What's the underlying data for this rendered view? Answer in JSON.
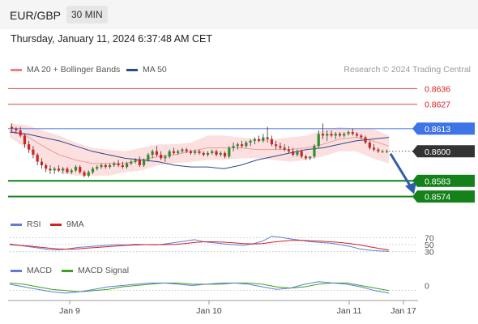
{
  "header": {
    "pair": "EUR/GBP",
    "timeframe": "30 MIN"
  },
  "datetime": "Thursday, January 11, 2024 6:37:48 AM CET",
  "legend_main": [
    {
      "label": "MA 20 + Bollinger Bands",
      "color": "#f08080"
    },
    {
      "label": "MA 50",
      "color": "#2c4a8a"
    }
  ],
  "credit": "Research © 2024 Trading Central",
  "legend_rsi": [
    {
      "label": "RSI",
      "color": "#5b7fd6"
    },
    {
      "label": "9MA",
      "color": "#d42020"
    }
  ],
  "legend_macd": [
    {
      "label": "MACD",
      "color": "#5b7fd6"
    },
    {
      "label": "MACD Signal",
      "color": "#3ea21b"
    }
  ],
  "chart_data": {
    "type": "candlestick",
    "instrument": "EUR/GBP",
    "interval": "30 MIN",
    "ylim": [
      0.8565,
      0.8645
    ],
    "levels": [
      {
        "value": 0.8636,
        "label": "0.8636",
        "style": "resistance"
      },
      {
        "value": 0.8627,
        "label": "0.8627",
        "style": "resistance"
      },
      {
        "value": 0.8613,
        "label": "0.8613",
        "style": "pivot"
      },
      {
        "value": 0.86,
        "label": "0.8600",
        "style": "last"
      },
      {
        "value": 0.8583,
        "label": "0.8583",
        "style": "support"
      },
      {
        "value": 0.8574,
        "label": "0.8574",
        "style": "support"
      }
    ],
    "candles": [
      [
        0.8614,
        0.8616,
        0.8611,
        0.8613
      ],
      [
        0.8613,
        0.8614,
        0.861,
        0.8612
      ],
      [
        0.8612,
        0.8614,
        0.8608,
        0.8609
      ],
      [
        0.8609,
        0.861,
        0.8602,
        0.8604
      ],
      [
        0.8604,
        0.8606,
        0.8599,
        0.8601
      ],
      [
        0.8601,
        0.8603,
        0.8596,
        0.8598
      ],
      [
        0.8598,
        0.8599,
        0.8592,
        0.8594
      ],
      [
        0.8594,
        0.8596,
        0.859,
        0.8592
      ],
      [
        0.8592,
        0.8593,
        0.8588,
        0.859
      ],
      [
        0.859,
        0.8592,
        0.8587,
        0.8589
      ],
      [
        0.8589,
        0.8591,
        0.8587,
        0.859
      ],
      [
        0.859,
        0.8592,
        0.8588,
        0.8589
      ],
      [
        0.8589,
        0.8591,
        0.8587,
        0.859
      ],
      [
        0.859,
        0.8591,
        0.8587,
        0.8588
      ],
      [
        0.8588,
        0.859,
        0.8587,
        0.8589
      ],
      [
        0.8589,
        0.8592,
        0.8588,
        0.8591
      ],
      [
        0.8591,
        0.8592,
        0.8587,
        0.8588
      ],
      [
        0.8588,
        0.8589,
        0.8585,
        0.8586
      ],
      [
        0.8586,
        0.8589,
        0.8585,
        0.8588
      ],
      [
        0.8588,
        0.8591,
        0.8587,
        0.859
      ],
      [
        0.859,
        0.8592,
        0.8589,
        0.8591
      ],
      [
        0.8591,
        0.8593,
        0.859,
        0.8592
      ],
      [
        0.8592,
        0.8593,
        0.859,
        0.8591
      ],
      [
        0.8591,
        0.8593,
        0.859,
        0.8592
      ],
      [
        0.8592,
        0.8594,
        0.8591,
        0.8593
      ],
      [
        0.8593,
        0.8595,
        0.8591,
        0.8592
      ],
      [
        0.8592,
        0.8594,
        0.859,
        0.8591
      ],
      [
        0.8591,
        0.8594,
        0.859,
        0.8593
      ],
      [
        0.8593,
        0.8595,
        0.8592,
        0.8594
      ],
      [
        0.8594,
        0.8596,
        0.8593,
        0.8595
      ],
      [
        0.8595,
        0.8597,
        0.8591,
        0.8592
      ],
      [
        0.8592,
        0.8596,
        0.8591,
        0.8595
      ],
      [
        0.8595,
        0.8599,
        0.8594,
        0.8598
      ],
      [
        0.8598,
        0.8601,
        0.8596,
        0.86
      ],
      [
        0.86,
        0.8603,
        0.8597,
        0.8598
      ],
      [
        0.8598,
        0.86,
        0.8595,
        0.8596
      ],
      [
        0.8596,
        0.8598,
        0.8594,
        0.8597
      ],
      [
        0.8597,
        0.8601,
        0.8596,
        0.86
      ],
      [
        0.86,
        0.8602,
        0.8598,
        0.8599
      ],
      [
        0.8599,
        0.8601,
        0.8598,
        0.86
      ],
      [
        0.86,
        0.8602,
        0.8599,
        0.8601
      ],
      [
        0.8601,
        0.8602,
        0.8599,
        0.86
      ],
      [
        0.86,
        0.8601,
        0.8598,
        0.8599
      ],
      [
        0.8599,
        0.8601,
        0.8598,
        0.86
      ],
      [
        0.86,
        0.8601,
        0.8598,
        0.8599
      ],
      [
        0.8599,
        0.86,
        0.8597,
        0.8598
      ],
      [
        0.8598,
        0.86,
        0.8597,
        0.8599
      ],
      [
        0.8599,
        0.8601,
        0.8598,
        0.86
      ],
      [
        0.86,
        0.8601,
        0.8597,
        0.8598
      ],
      [
        0.8598,
        0.86,
        0.8597,
        0.8599
      ],
      [
        0.8599,
        0.86,
        0.8596,
        0.8597
      ],
      [
        0.8597,
        0.8603,
        0.8596,
        0.8602
      ],
      [
        0.8602,
        0.8605,
        0.86,
        0.8603
      ],
      [
        0.8603,
        0.8605,
        0.8601,
        0.8604
      ],
      [
        0.8604,
        0.8606,
        0.8602,
        0.8603
      ],
      [
        0.8603,
        0.8606,
        0.8602,
        0.8605
      ],
      [
        0.8605,
        0.8607,
        0.8603,
        0.8606
      ],
      [
        0.8606,
        0.8608,
        0.8604,
        0.8607
      ],
      [
        0.8607,
        0.8609,
        0.8605,
        0.8606
      ],
      [
        0.8606,
        0.861,
        0.8605,
        0.8608
      ],
      [
        0.8608,
        0.8614,
        0.8605,
        0.8607
      ],
      [
        0.8607,
        0.8609,
        0.8603,
        0.8604
      ],
      [
        0.8604,
        0.8606,
        0.8601,
        0.8603
      ],
      [
        0.8603,
        0.8605,
        0.8601,
        0.8602
      ],
      [
        0.8602,
        0.8604,
        0.86,
        0.8601
      ],
      [
        0.8601,
        0.8603,
        0.8599,
        0.86
      ],
      [
        0.86,
        0.8602,
        0.8597,
        0.8598
      ],
      [
        0.8598,
        0.8601,
        0.8597,
        0.86
      ],
      [
        0.86,
        0.8601,
        0.8596,
        0.8597
      ],
      [
        0.8597,
        0.8598,
        0.8595,
        0.8596
      ],
      [
        0.8596,
        0.8597,
        0.8595,
        0.8597
      ],
      [
        0.8597,
        0.8604,
        0.8596,
        0.8603
      ],
      [
        0.8603,
        0.8612,
        0.8602,
        0.861
      ],
      [
        0.861,
        0.8616,
        0.8607,
        0.8609
      ],
      [
        0.8609,
        0.8612,
        0.8606,
        0.861
      ],
      [
        0.861,
        0.8612,
        0.8608,
        0.8609
      ],
      [
        0.8609,
        0.8611,
        0.8607,
        0.861
      ],
      [
        0.861,
        0.8611,
        0.8608,
        0.8609
      ],
      [
        0.8609,
        0.8611,
        0.8608,
        0.861
      ],
      [
        0.861,
        0.8612,
        0.8609,
        0.8611
      ],
      [
        0.8611,
        0.8613,
        0.8609,
        0.861
      ],
      [
        0.861,
        0.8611,
        0.8608,
        0.8609
      ],
      [
        0.8609,
        0.861,
        0.8607,
        0.8608
      ],
      [
        0.8608,
        0.8609,
        0.8604,
        0.8605
      ],
      [
        0.8605,
        0.8606,
        0.8601,
        0.8602
      ],
      [
        0.8602,
        0.8604,
        0.86,
        0.8601
      ],
      [
        0.8601,
        0.8602,
        0.8599,
        0.86
      ],
      [
        0.86,
        0.8601,
        0.8599,
        0.86
      ],
      [
        0.86,
        0.8601,
        0.8599,
        0.86
      ]
    ],
    "ma50": [
      0.8611,
      0.861,
      0.8608,
      0.8606,
      0.8603,
      0.86,
      0.8598,
      0.8596,
      0.8595,
      0.8594,
      0.8592,
      0.8591,
      0.8591,
      0.859,
      0.8592,
      0.8595,
      0.8597,
      0.8599,
      0.8601,
      0.8602,
      0.8604,
      0.8606,
      0.8607,
      0.8608
    ],
    "bb_upper": [
      0.8616,
      0.8615,
      0.8612,
      0.8609,
      0.8605,
      0.8602,
      0.8601,
      0.86,
      0.8602,
      0.8604,
      0.8604,
      0.8605,
      0.8609,
      0.8609,
      0.8608,
      0.8607,
      0.8607,
      0.8608,
      0.8609,
      0.8612,
      0.8614,
      0.8613,
      0.8613,
      0.8609
    ],
    "bb_lower": [
      0.8608,
      0.8602,
      0.8593,
      0.8588,
      0.8586,
      0.8586,
      0.8586,
      0.8588,
      0.8589,
      0.8592,
      0.8593,
      0.8594,
      0.8595,
      0.8595,
      0.8596,
      0.8596,
      0.8595,
      0.8594,
      0.8595,
      0.8597,
      0.86,
      0.86,
      0.8596,
      0.8593
    ],
    "ma20": [
      0.8612,
      0.8609,
      0.8603,
      0.8598,
      0.8595,
      0.8593,
      0.8593,
      0.8593,
      0.8595,
      0.8597,
      0.8598,
      0.86,
      0.8602,
      0.8602,
      0.8602,
      0.8601,
      0.8601,
      0.8601,
      0.8602,
      0.8604,
      0.8607,
      0.8608,
      0.8606,
      0.8603
    ],
    "rsi": {
      "ticks": [
        70,
        50,
        30
      ],
      "ylim": [
        20,
        80
      ],
      "rsi": [
        52,
        48,
        44,
        40,
        36,
        35,
        38,
        42,
        44,
        46,
        48,
        50,
        49,
        51,
        50,
        49,
        52,
        56,
        60,
        64,
        58,
        55,
        52,
        50,
        48,
        52,
        60,
        74,
        70,
        66,
        62,
        58,
        56,
        54,
        50,
        45,
        38,
        34,
        32,
        31
      ],
      "ma9": [
        50,
        48,
        46,
        43,
        40,
        38,
        37,
        38,
        40,
        42,
        44,
        46,
        48,
        49,
        50,
        50,
        50,
        51,
        53,
        56,
        58,
        58,
        57,
        55,
        53,
        52,
        53,
        57,
        60,
        62,
        62,
        61,
        60,
        58,
        56,
        53,
        49,
        44,
        39,
        35
      ]
    },
    "macd": {
      "ticks": [
        0
      ],
      "ylim": [
        -0.0008,
        0.0008
      ],
      "macd": [
        0.0001,
        -0.0001,
        -0.0003,
        -0.0005,
        -0.0006,
        -0.0005,
        -0.0003,
        -0.0001,
        0.0,
        0.0001,
        0.0002,
        0.0002,
        0.0001,
        0.0,
        0.0001,
        0.0002,
        0.0002,
        0.0001,
        -0.0001,
        -0.0003,
        -0.0002,
        0.0001,
        0.0003,
        0.0002,
        0.0001,
        -0.0001,
        -0.0004,
        -0.0006
      ],
      "signal": [
        0.0002,
        0.0001,
        -0.0001,
        -0.0003,
        -0.0004,
        -0.0005,
        -0.0004,
        -0.0003,
        -0.0001,
        0.0,
        0.0001,
        0.0002,
        0.0002,
        0.0001,
        0.0001,
        0.0001,
        0.0002,
        0.0002,
        0.0001,
        -0.0001,
        -0.0002,
        -0.0001,
        0.0001,
        0.0002,
        0.0002,
        0.0,
        -0.0002,
        -0.0004
      ]
    },
    "x_ticks": [
      "Jan 9",
      "Jan 10",
      "Jan 11",
      "Jan 17"
    ]
  }
}
